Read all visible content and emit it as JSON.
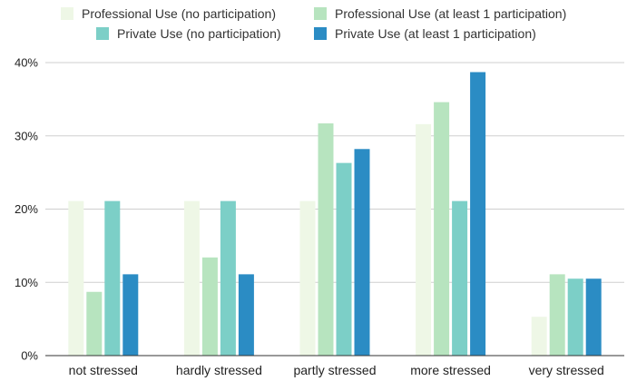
{
  "chart_data": {
    "type": "bar",
    "categories": [
      "not stressed",
      "hardly stressed",
      "partly stressed",
      "more stressed",
      "very stressed"
    ],
    "series": [
      {
        "name": "Professional Use (no participation)",
        "color": "#eef7e6",
        "values": [
          21.1,
          21.1,
          21.1,
          31.6,
          5.3
        ]
      },
      {
        "name": "Professional Use (at least 1 participation)",
        "color": "#b7e4bf",
        "values": [
          8.7,
          13.4,
          31.7,
          34.6,
          11.1
        ]
      },
      {
        "name": "Private Use (no participation)",
        "color": "#7ccfc7",
        "values": [
          21.1,
          21.1,
          26.3,
          21.1,
          10.5
        ]
      },
      {
        "name": "Private Use (at least 1 participation)",
        "color": "#2b8cc4",
        "values": [
          11.1,
          11.1,
          28.2,
          38.7,
          10.5
        ]
      }
    ],
    "yticks": [
      "0%",
      "10%",
      "20%",
      "30%",
      "40%"
    ],
    "ytick_values": [
      0,
      10,
      20,
      30,
      40
    ],
    "ylim": [
      0,
      40
    ],
    "grid": true,
    "legend_position": "top"
  }
}
